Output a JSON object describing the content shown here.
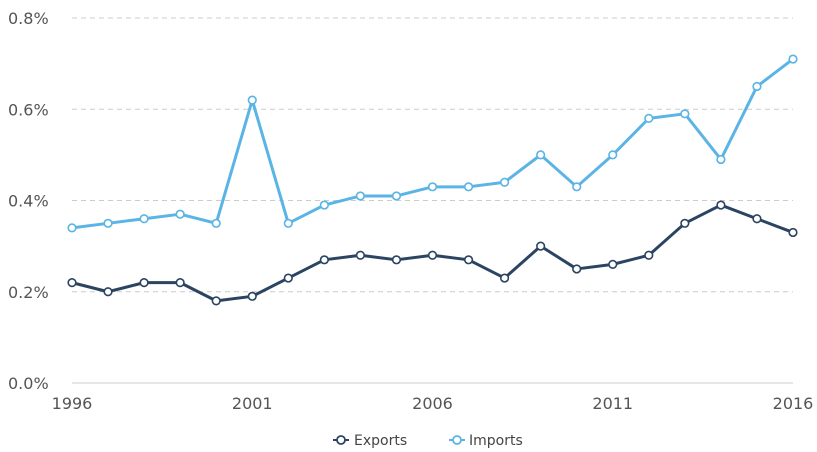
{
  "chart_data": {
    "type": "line",
    "title": "",
    "xlabel": "",
    "ylabel": "",
    "x": [
      1996,
      1997,
      1998,
      1999,
      2000,
      2001,
      2002,
      2003,
      2004,
      2005,
      2006,
      2007,
      2008,
      2009,
      2010,
      2011,
      2012,
      2013,
      2014,
      2015,
      2016
    ],
    "x_ticks": [
      "1996",
      "2001",
      "2006",
      "2011",
      "2016"
    ],
    "y_ticks": [
      "0.0%",
      "0.2%",
      "0.4%",
      "0.6%",
      "0.8%"
    ],
    "ylim": [
      0,
      0.8
    ],
    "y_unit": "%",
    "grid": true,
    "legend_position": "bottom-center",
    "series": [
      {
        "name": "Exports",
        "color": "#2b4462",
        "values": [
          0.22,
          0.2,
          0.22,
          0.22,
          0.18,
          0.19,
          0.23,
          0.27,
          0.28,
          0.27,
          0.28,
          0.27,
          0.23,
          0.3,
          0.25,
          0.26,
          0.28,
          0.35,
          0.39,
          0.36,
          0.33
        ]
      },
      {
        "name": "Imports",
        "color": "#5ab4e5",
        "values": [
          0.34,
          0.35,
          0.36,
          0.37,
          0.35,
          0.62,
          0.35,
          0.39,
          0.41,
          0.41,
          0.43,
          0.43,
          0.44,
          0.5,
          0.43,
          0.5,
          0.58,
          0.59,
          0.49,
          0.65,
          0.71
        ]
      }
    ]
  }
}
